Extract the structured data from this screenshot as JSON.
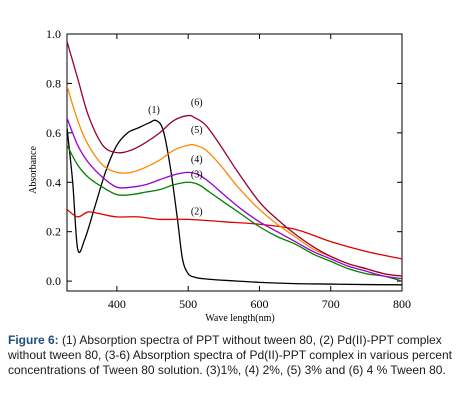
{
  "chart_data": {
    "type": "line",
    "xlabel": "Wave length(nm)",
    "ylabel": "Absorbance",
    "xlim": [
      330,
      800
    ],
    "ylim": [
      -0.04,
      1.0
    ],
    "x_ticks": [
      400,
      500,
      600,
      700,
      800
    ],
    "x_tick_labels": [
      "400",
      "500",
      "600",
      "700",
      "800"
    ],
    "y_ticks": [
      0.0,
      0.2,
      0.4,
      0.6,
      0.8,
      1.0
    ],
    "y_tick_labels": [
      "0.0",
      "0.2",
      "0.4",
      "0.6",
      "0.8",
      "1.0"
    ],
    "grid": false,
    "series": [
      {
        "name": "(1)",
        "color": "#000000",
        "x": [
          330,
          338,
          345,
          355,
          370,
          385,
          400,
          415,
          430,
          445,
          455,
          465,
          475,
          485,
          492,
          500,
          510,
          520,
          540,
          570,
          600,
          650,
          700,
          750,
          800
        ],
        "y": [
          0.62,
          0.4,
          0.13,
          0.17,
          0.31,
          0.45,
          0.55,
          0.6,
          0.62,
          0.64,
          0.65,
          0.61,
          0.46,
          0.25,
          0.09,
          0.03,
          0.015,
          0.01,
          0.005,
          0.0,
          -0.005,
          -0.01,
          -0.012,
          -0.014,
          -0.015
        ]
      },
      {
        "name": "(2)",
        "color": "#e00000",
        "x": [
          330,
          345,
          360,
          380,
          400,
          430,
          460,
          500,
          550,
          600,
          650,
          700,
          750,
          800
        ],
        "y": [
          0.29,
          0.26,
          0.28,
          0.27,
          0.26,
          0.26,
          0.25,
          0.25,
          0.24,
          0.23,
          0.21,
          0.16,
          0.12,
          0.09
        ]
      },
      {
        "name": "(3)",
        "color": "#008000",
        "x": [
          330,
          345,
          360,
          380,
          400,
          420,
          440,
          460,
          480,
          500,
          515,
          530,
          550,
          575,
          600,
          625,
          650,
          675,
          700,
          725,
          750,
          775,
          800
        ],
        "y": [
          0.55,
          0.47,
          0.42,
          0.38,
          0.35,
          0.35,
          0.36,
          0.37,
          0.39,
          0.4,
          0.39,
          0.36,
          0.32,
          0.27,
          0.22,
          0.18,
          0.15,
          0.11,
          0.08,
          0.05,
          0.03,
          0.02,
          0.0
        ]
      },
      {
        "name": "(4)",
        "color": "#9900cc",
        "x": [
          330,
          345,
          360,
          380,
          400,
          420,
          440,
          460,
          480,
          500,
          515,
          530,
          550,
          575,
          600,
          625,
          650,
          675,
          700,
          725,
          750,
          775,
          800
        ],
        "y": [
          0.66,
          0.55,
          0.48,
          0.42,
          0.38,
          0.38,
          0.39,
          0.41,
          0.43,
          0.44,
          0.43,
          0.4,
          0.35,
          0.29,
          0.24,
          0.2,
          0.16,
          0.12,
          0.09,
          0.06,
          0.04,
          0.02,
          0.01
        ]
      },
      {
        "name": "(5)",
        "color": "#ff8800",
        "x": [
          330,
          345,
          360,
          380,
          400,
          420,
          440,
          460,
          480,
          500,
          510,
          525,
          545,
          570,
          600,
          625,
          650,
          675,
          700,
          725,
          750,
          775,
          800
        ],
        "y": [
          0.79,
          0.65,
          0.55,
          0.47,
          0.44,
          0.44,
          0.46,
          0.49,
          0.53,
          0.55,
          0.55,
          0.53,
          0.47,
          0.38,
          0.29,
          0.23,
          0.18,
          0.13,
          0.1,
          0.07,
          0.05,
          0.03,
          0.02
        ]
      },
      {
        "name": "(6)",
        "color": "#990033",
        "x": [
          330,
          345,
          360,
          380,
          400,
          420,
          440,
          460,
          480,
          500,
          510,
          525,
          545,
          570,
          600,
          625,
          650,
          675,
          700,
          725,
          750,
          775,
          800
        ],
        "y": [
          0.97,
          0.82,
          0.67,
          0.55,
          0.52,
          0.53,
          0.56,
          0.6,
          0.65,
          0.67,
          0.66,
          0.63,
          0.55,
          0.44,
          0.32,
          0.25,
          0.19,
          0.14,
          0.1,
          0.07,
          0.05,
          0.03,
          0.02
        ]
      }
    ],
    "annotations": [
      {
        "text": "(1)",
        "x": 452,
        "y": 0.68
      },
      {
        "text": "(6)",
        "x": 512,
        "y": 0.71
      },
      {
        "text": "(5)",
        "x": 512,
        "y": 0.6
      },
      {
        "text": "(4)",
        "x": 512,
        "y": 0.48
      },
      {
        "text": "(3)",
        "x": 512,
        "y": 0.42
      },
      {
        "text": "(2)",
        "x": 512,
        "y": 0.27
      }
    ]
  },
  "caption": {
    "label": "Figure 6:",
    "text": " (1) Absorption spectra of PPT without tween 80, (2) Pd(II)-PPT complex without tween 80, (3-6) Absorption spectra of Pd(II)-PPT complex in various percent concentrations of Tween 80 solution. (3)1%, (4) 2%, (5) 3% and (6) 4 % Tween 80."
  }
}
